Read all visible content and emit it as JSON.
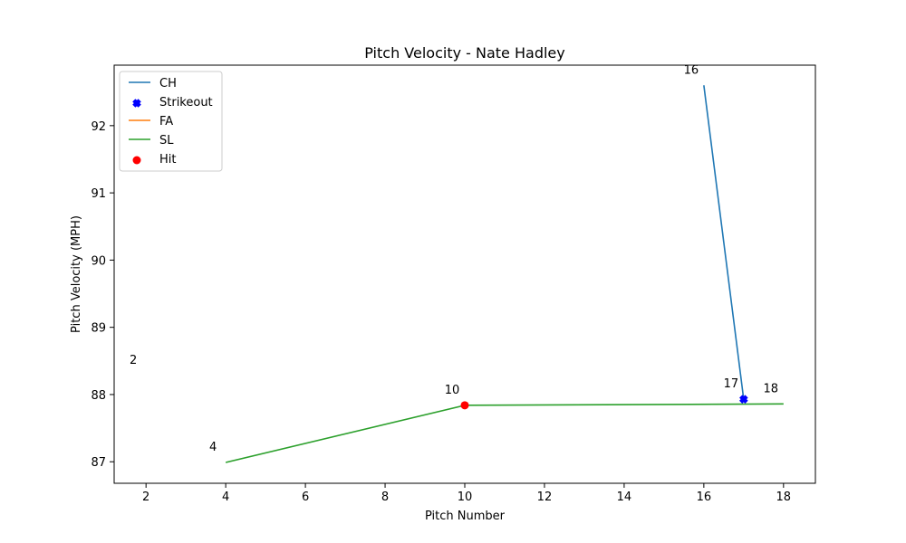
{
  "chart_data": {
    "type": "line",
    "title": "Pitch Velocity - Nate Hadley",
    "xlabel": "Pitch Number",
    "ylabel": "Pitch Velocity (MPH)",
    "xlim": [
      1.2,
      18.8
    ],
    "ylim": [
      86.68,
      92.9
    ],
    "xticks": [
      2,
      4,
      6,
      8,
      10,
      12,
      14,
      16,
      18
    ],
    "yticks": [
      87,
      88,
      89,
      90,
      91,
      92
    ],
    "grid": false,
    "legend_position": "top-left",
    "legend": [
      "CH",
      "Strikeout",
      "FA",
      "SL",
      "Hit"
    ],
    "series": [
      {
        "name": "CH",
        "type": "line",
        "color": "#1f77b4",
        "points": [
          [
            16,
            92.6
          ],
          [
            17,
            87.93
          ]
        ]
      },
      {
        "name": "FA",
        "type": "line",
        "color": "#ff7f0e",
        "points": [
          [
            2,
            88.28
          ]
        ]
      },
      {
        "name": "SL",
        "type": "line",
        "color": "#2ca02c",
        "points": [
          [
            4,
            86.99
          ],
          [
            10,
            87.84
          ],
          [
            18,
            87.86
          ]
        ]
      }
    ],
    "markers": [
      {
        "name": "Strikeout",
        "shape": "x",
        "color": "#0000ff",
        "points": [
          [
            17,
            87.93
          ]
        ]
      },
      {
        "name": "Hit",
        "shape": "circle",
        "color": "#ff0000",
        "points": [
          [
            10,
            87.84
          ]
        ]
      }
    ],
    "point_labels": [
      {
        "text": "2",
        "x": 2,
        "y": 88.28
      },
      {
        "text": "4",
        "x": 4,
        "y": 86.99
      },
      {
        "text": "10",
        "x": 10,
        "y": 87.84
      },
      {
        "text": "16",
        "x": 16,
        "y": 92.6
      },
      {
        "text": "17",
        "x": 17,
        "y": 87.93
      },
      {
        "text": "18",
        "x": 18,
        "y": 87.86
      }
    ]
  }
}
